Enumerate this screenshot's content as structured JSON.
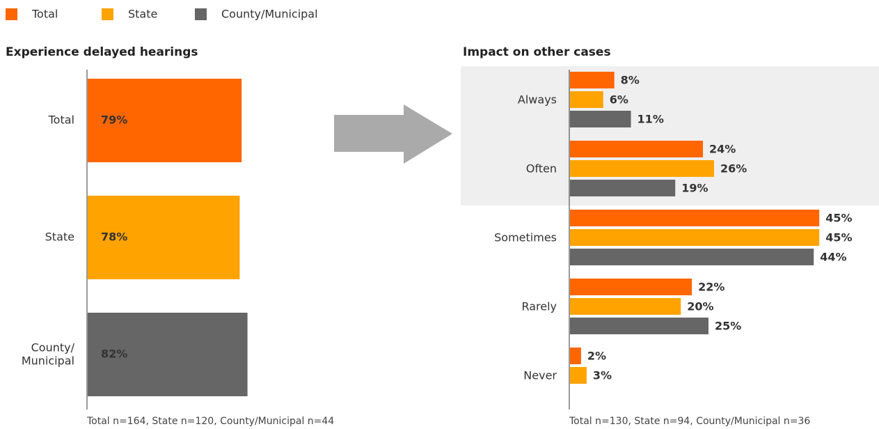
{
  "chart_data": [
    {
      "type": "bar",
      "title": "Experience delayed hearings",
      "categories": [
        "Total",
        "State",
        "County/\nMunicipal"
      ],
      "values": [
        79,
        78,
        82
      ],
      "value_labels": [
        "79%",
        "78%",
        "82%"
      ],
      "colors": [
        "#ff6600",
        "#ffa300",
        "#666666"
      ],
      "xlim": [
        0,
        100
      ],
      "note": "Total n=164, State n=120, County/Municipal n=44"
    },
    {
      "type": "bar",
      "title": "Impact on other cases",
      "categories": [
        "Always",
        "Often",
        "Sometimes",
        "Rarely",
        "Never"
      ],
      "series": [
        {
          "name": "Total",
          "color": "#ff6600",
          "values": [
            8,
            24,
            45,
            22,
            2
          ],
          "value_labels": [
            "8%",
            "24%",
            "45%",
            "22%",
            "2%"
          ]
        },
        {
          "name": "State",
          "color": "#ffa300",
          "values": [
            6,
            26,
            45,
            20,
            3
          ],
          "value_labels": [
            "6%",
            "26%",
            "45%",
            "20%",
            "3%"
          ]
        },
        {
          "name": "County/Municipal",
          "color": "#666666",
          "values": [
            11,
            19,
            44,
            25,
            null
          ],
          "value_labels": [
            "11%",
            "19%",
            "44%",
            "25%",
            null
          ]
        }
      ],
      "xlim": [
        0,
        50
      ],
      "note": "Total n=130, State n=94, County/Municipal n=36"
    }
  ]
}
